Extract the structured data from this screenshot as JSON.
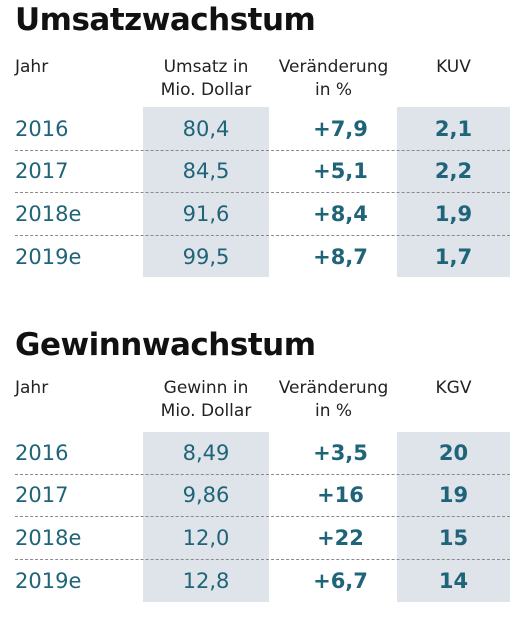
{
  "tables": [
    {
      "title": "Umsatzwachstum",
      "headers": {
        "year": "Jahr",
        "value_line1": "Umsatz in",
        "value_line2": "Mio. Dollar",
        "change_line1": "Veränderung",
        "change_line2": "in %",
        "ratio": "KUV"
      },
      "rows": [
        {
          "year": "2016",
          "value": "80,4",
          "change": "+7,9",
          "ratio": "2,1"
        },
        {
          "year": "2017",
          "value": "84,5",
          "change": "+5,1",
          "ratio": "2,2"
        },
        {
          "year": "2018e",
          "value": "91,6",
          "change": "+8,4",
          "ratio": "1,9"
        },
        {
          "year": "2019e",
          "value": "99,5",
          "change": "+8,7",
          "ratio": "1,7"
        }
      ]
    },
    {
      "title": "Gewinnwachstum",
      "headers": {
        "year": "Jahr",
        "value_line1": "Gewinn in",
        "value_line2": "Mio. Dollar",
        "change_line1": "Veränderung",
        "change_line2": "in %",
        "ratio": "KGV"
      },
      "rows": [
        {
          "year": "2016",
          "value": "8,49",
          "change": "+3,5",
          "ratio": "20"
        },
        {
          "year": "2017",
          "value": "9,86",
          "change": "+16",
          "ratio": "19"
        },
        {
          "year": "2018e",
          "value": "12,0",
          "change": "+22",
          "ratio": "15"
        },
        {
          "year": "2019e",
          "value": "12,8",
          "change": "+6,7",
          "ratio": "14"
        }
      ]
    }
  ],
  "colors": {
    "value_text": "#1f6478",
    "column_shading": "#dfe3ea",
    "title_text": "#111111"
  }
}
